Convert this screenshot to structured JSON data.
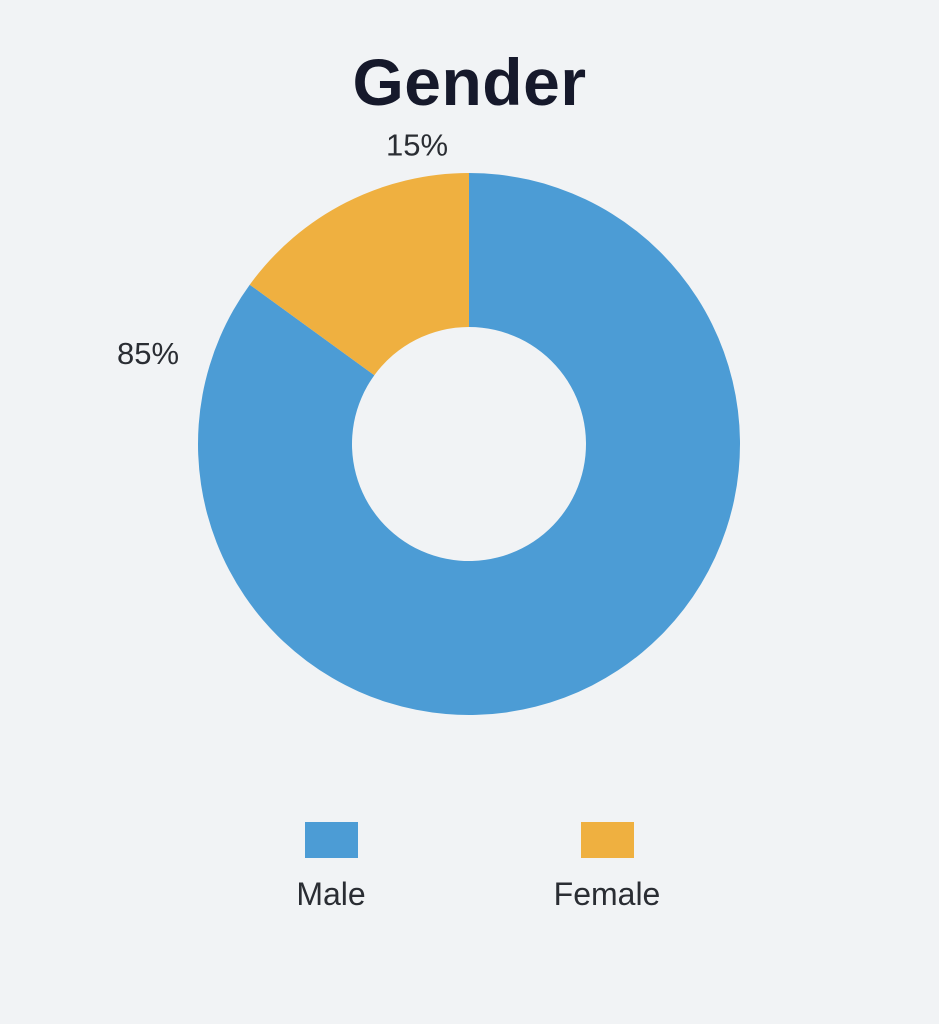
{
  "chart_data": {
    "type": "pie",
    "variant": "donut",
    "title": "Gender",
    "categories": [
      "Male",
      "Female"
    ],
    "values": [
      85,
      15
    ],
    "labels": [
      "85%",
      "15%"
    ],
    "colors": [
      "#4c9cd5",
      "#efb040"
    ],
    "legend": {
      "position": "bottom",
      "items": [
        {
          "label": "Male",
          "color": "#4c9cd5"
        },
        {
          "label": "Female",
          "color": "#efb040"
        }
      ]
    }
  }
}
